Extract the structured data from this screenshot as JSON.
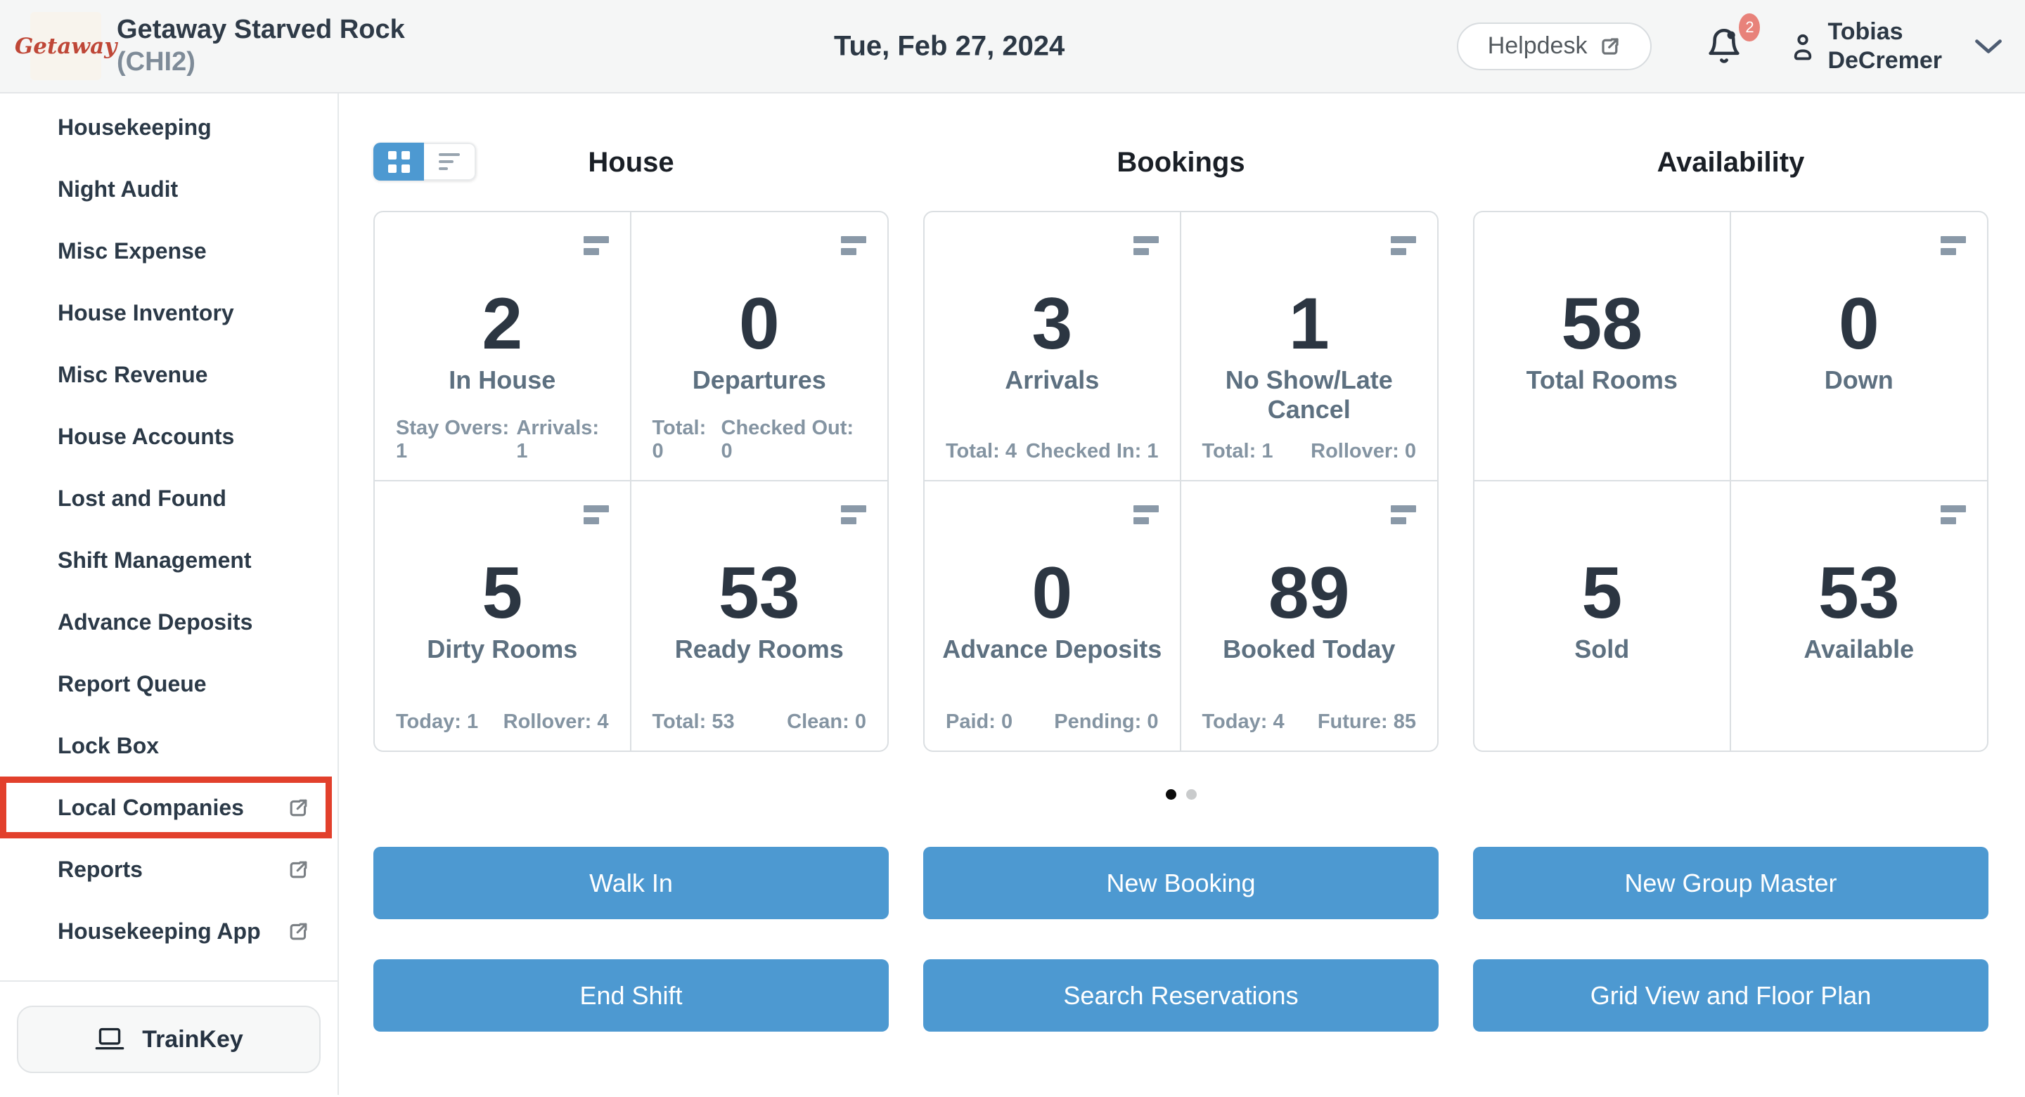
{
  "colors": {
    "accent": "#4d99d1",
    "highlight": "#e2402c",
    "badge": "#e8827a",
    "topbar_bg": "#f5f6f6"
  },
  "header": {
    "logo_text": "Getaway",
    "property_name": "Getaway Starved Rock",
    "property_code": "(CHI2)",
    "date": "Tue, Feb 27, 2024",
    "helpdesk_label": "Helpdesk",
    "notification_count": "2",
    "user_name_line1": "Tobias",
    "user_name_line2": "DeCremer"
  },
  "sidebar": {
    "items": [
      {
        "label": "Housekeeping",
        "external": false,
        "highlighted": false
      },
      {
        "label": "Night Audit",
        "external": false,
        "highlighted": false
      },
      {
        "label": "Misc Expense",
        "external": false,
        "highlighted": false
      },
      {
        "label": "House Inventory",
        "external": false,
        "highlighted": false
      },
      {
        "label": "Misc Revenue",
        "external": false,
        "highlighted": false
      },
      {
        "label": "House Accounts",
        "external": false,
        "highlighted": false
      },
      {
        "label": "Lost and Found",
        "external": false,
        "highlighted": false
      },
      {
        "label": "Shift Management",
        "external": false,
        "highlighted": false
      },
      {
        "label": "Advance Deposits",
        "external": false,
        "highlighted": false
      },
      {
        "label": "Report Queue",
        "external": false,
        "highlighted": false
      },
      {
        "label": "Lock Box",
        "external": false,
        "highlighted": false
      },
      {
        "label": "Local Companies",
        "external": true,
        "highlighted": true
      },
      {
        "label": "Reports",
        "external": true,
        "highlighted": false
      },
      {
        "label": "Housekeeping App",
        "external": true,
        "highlighted": false
      }
    ],
    "trainkey_label": "TrainKey"
  },
  "dashboard": {
    "view_toggle": {
      "active": "grid"
    },
    "columns": [
      {
        "title": "House",
        "cards": [
          {
            "value": "2",
            "label": "In House",
            "menu": true,
            "stats": [
              "Stay Overs: 1",
              "Arrivals: 1"
            ]
          },
          {
            "value": "0",
            "label": "Departures",
            "menu": true,
            "stats": [
              "Total: 0",
              "Checked Out: 0"
            ]
          },
          {
            "value": "5",
            "label": "Dirty Rooms",
            "menu": true,
            "stats": [
              "Today: 1",
              "Rollover: 4"
            ]
          },
          {
            "value": "53",
            "label": "Ready Rooms",
            "menu": true,
            "stats": [
              "Total: 53",
              "Clean: 0"
            ]
          }
        ],
        "actions": [
          "Walk In",
          "End Shift"
        ]
      },
      {
        "title": "Bookings",
        "cards": [
          {
            "value": "3",
            "label": "Arrivals",
            "menu": true,
            "stats": [
              "Total: 4",
              "Checked In: 1"
            ]
          },
          {
            "value": "1",
            "label": "No Show/Late Cancel",
            "menu": true,
            "stats": [
              "Total: 1",
              "Rollover: 0"
            ]
          },
          {
            "value": "0",
            "label": "Advance Deposits",
            "menu": true,
            "stats": [
              "Paid: 0",
              "Pending: 0"
            ]
          },
          {
            "value": "89",
            "label": "Booked Today",
            "menu": true,
            "stats": [
              "Today: 4",
              "Future: 85"
            ]
          }
        ],
        "actions": [
          "New Booking",
          "Search Reservations"
        ]
      },
      {
        "title": "Availability",
        "cards": [
          {
            "value": "58",
            "label": "Total Rooms",
            "menu": false,
            "stats": []
          },
          {
            "value": "0",
            "label": "Down",
            "menu": true,
            "stats": []
          },
          {
            "value": "5",
            "label": "Sold",
            "menu": false,
            "stats": []
          },
          {
            "value": "53",
            "label": "Available",
            "menu": true,
            "stats": []
          }
        ],
        "actions": [
          "New Group Master",
          "Grid View and Floor Plan"
        ]
      }
    ],
    "pagination": {
      "dots": 2,
      "active_index": 0
    }
  }
}
